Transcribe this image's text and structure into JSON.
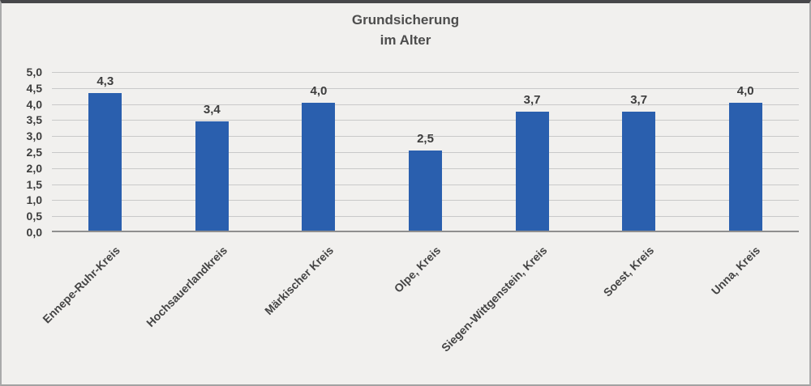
{
  "chart_data": {
    "type": "bar",
    "title": "Grundsicherung im Alter",
    "title_lines": [
      "Grundsicherung",
      "im Alter"
    ],
    "categories": [
      "Ennepe-Ruhr-Kreis",
      "Hochsauerlandkreis",
      "Märkischer Kreis",
      "Olpe, Kreis",
      "Siegen-Wittgenstein, Kreis",
      "Soest, Kreis",
      "Unna, Kreis"
    ],
    "values": [
      4.3,
      3.4,
      4.0,
      2.5,
      3.7,
      3.7,
      4.0
    ],
    "value_labels": [
      "4,3",
      "3,4",
      "4,0",
      "2,5",
      "3,7",
      "3,7",
      "4,0"
    ],
    "xlabel": "",
    "ylabel": "",
    "ylim": [
      0,
      5
    ],
    "ytick_step": 0.5,
    "ytick_labels_top_to_bottom": [
      "5,0",
      "4,5",
      "4,0",
      "3,5",
      "3,0",
      "2,5",
      "2,0",
      "1,5",
      "1,0",
      "0,5",
      "0,0"
    ],
    "grid": true,
    "legend": "none",
    "bar_color": "#2a5fae",
    "gridline_color": "#c9c9c9",
    "axis_line_color": "#8f8f8f",
    "text_color": "#3d3d3d",
    "background_color": "#f1f0ee"
  }
}
